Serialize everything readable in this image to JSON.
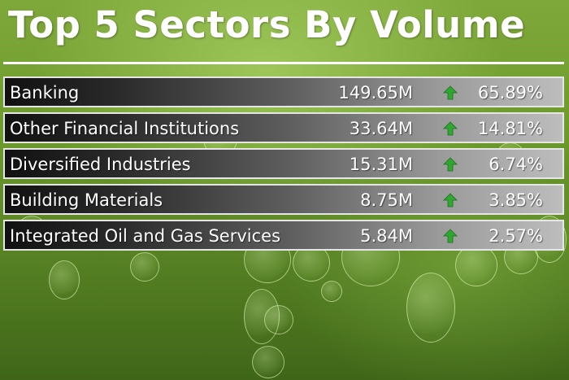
{
  "title": "Top 5 Sectors By Volume",
  "colors": {
    "arrow_up": "#2fa82f",
    "background": "#6d9a2c",
    "text": "#ffffff"
  },
  "rows": [
    {
      "sector": "Banking",
      "volume": "149.65M",
      "trend_icon": "up-arrow-icon",
      "percent": "65.89%"
    },
    {
      "sector": "Other Financial Institutions",
      "volume": "33.64M",
      "trend_icon": "up-arrow-icon",
      "percent": "14.81%"
    },
    {
      "sector": "Diversified Industries",
      "volume": "15.31M",
      "trend_icon": "up-arrow-icon",
      "percent": "6.74%"
    },
    {
      "sector": "Building Materials",
      "volume": "8.75M",
      "trend_icon": "up-arrow-icon",
      "percent": "3.85%"
    },
    {
      "sector": "Integrated Oil and Gas Services",
      "volume": "5.84M",
      "trend_icon": "up-arrow-icon",
      "percent": "2.57%"
    }
  ]
}
